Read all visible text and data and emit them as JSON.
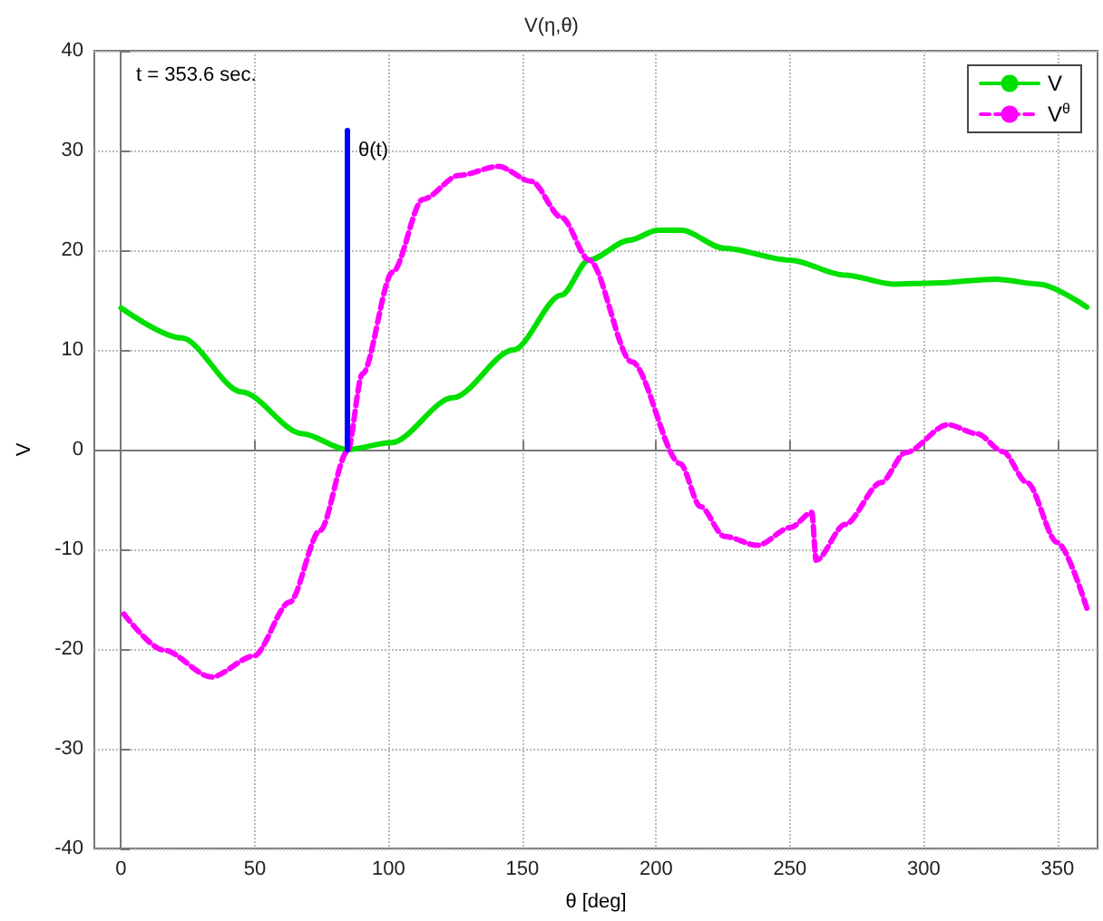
{
  "chart_data": {
    "type": "line",
    "title": "V(η,θ)",
    "xlabel": "θ [deg]",
    "ylabel": "V",
    "xlim": [
      -10,
      365
    ],
    "xticks": [
      0,
      50,
      100,
      150,
      200,
      250,
      300,
      350
    ],
    "ylim": [
      -40,
      40
    ],
    "yticks": [
      -40,
      -30,
      -20,
      -10,
      0,
      10,
      20,
      30,
      40
    ],
    "grid": true,
    "legend": "top right",
    "marker": "none",
    "annotations": [
      "t = 353.6 sec.",
      {
        "text": "θ(t)",
        "x": 84.6,
        "y": 30
      }
    ],
    "series": [
      {
        "name": "V",
        "color": "#00e000",
        "line_style": "solid",
        "x": [
          0,
          22.6,
          45,
          67.7,
          84.6,
          101,
          124,
          146.6,
          164.6,
          174.8,
          190,
          200.5,
          209.5,
          225.3,
          250,
          270.6,
          288.6,
          304,
          327,
          343,
          361
        ],
        "values": [
          14.2,
          11.2,
          5.8,
          1.6,
          0,
          0.7,
          5.2,
          10,
          15.5,
          19,
          21,
          22,
          22,
          20.2,
          19,
          17.5,
          16.6,
          16.7,
          17.1,
          16.6,
          14.3
        ]
      },
      {
        "name": "V$^{θ}$",
        "color": "#ff00ff",
        "line_style": "dashed",
        "x": [
          1.1,
          15.8,
          33.8,
          49.6,
          63,
          74.4,
          84.6,
          90.2,
          101.5,
          112.8,
          126.3,
          141,
          153.4,
          164.6,
          175,
          190.9,
          209,
          216.5,
          225.5,
          237.9,
          250.3,
          258.2,
          259.8,
          270.6,
          284.1,
          293.2,
          309,
          320,
          329.6,
          338.6,
          349.9,
          361
        ],
        "values": [
          -16.5,
          -20.1,
          -22.8,
          -20.7,
          -15.3,
          -8.1,
          -0.2,
          7.6,
          17.8,
          25.1,
          27.5,
          28.4,
          26.9,
          23.3,
          19,
          8.8,
          -1.4,
          -5.7,
          -8.7,
          -9.6,
          -7.8,
          -6.3,
          -11.1,
          -7.5,
          -3.3,
          -0.3,
          2.5,
          1.6,
          -0.2,
          -3.3,
          -9.3,
          -15.9
        ]
      },
      {
        "color": "#0000ff",
        "line_style": "solid",
        "x": [
          84.6,
          84.6
        ],
        "values": [
          0,
          32
        ]
      }
    ]
  }
}
